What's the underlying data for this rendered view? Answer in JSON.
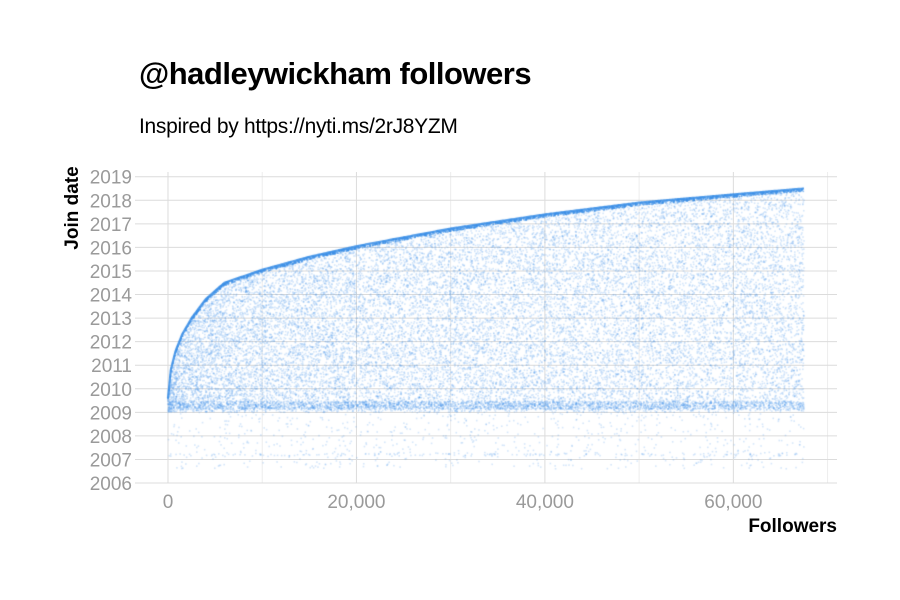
{
  "chart_data": {
    "type": "scatter",
    "title": "@hadleywickham followers",
    "subtitle": "Inspired by https://nyti.ms/2rJ8YZM",
    "xlabel": "Followers",
    "ylabel": "Join date",
    "xlim": [
      -3500,
      71000
    ],
    "ylim": [
      2006,
      2019.2
    ],
    "x_ticks": [
      0,
      20000,
      40000,
      60000
    ],
    "x_tick_labels": [
      "0",
      "20,000",
      "40,000",
      "60,000"
    ],
    "y_ticks": [
      2006,
      2007,
      2008,
      2009,
      2010,
      2011,
      2012,
      2013,
      2014,
      2015,
      2016,
      2017,
      2018,
      2019
    ],
    "y_tick_labels": [
      "2006",
      "2007",
      "2008",
      "2009",
      "2010",
      "2011",
      "2012",
      "2013",
      "2014",
      "2015",
      "2016",
      "2017",
      "2018",
      "2019"
    ],
    "grid": true,
    "point_color": "#3a8ee6",
    "n_followers": 67500,
    "upper_envelope": [
      {
        "x": 0,
        "y": 2009.6
      },
      {
        "x": 300,
        "y": 2010.8
      },
      {
        "x": 800,
        "y": 2011.6
      },
      {
        "x": 1500,
        "y": 2012.3
      },
      {
        "x": 2500,
        "y": 2013.0
      },
      {
        "x": 4000,
        "y": 2013.8
      },
      {
        "x": 6000,
        "y": 2014.5
      },
      {
        "x": 10000,
        "y": 2015.05
      },
      {
        "x": 15000,
        "y": 2015.6
      },
      {
        "x": 20000,
        "y": 2016.05
      },
      {
        "x": 30000,
        "y": 2016.8
      },
      {
        "x": 40000,
        "y": 2017.4
      },
      {
        "x": 50000,
        "y": 2017.9
      },
      {
        "x": 60000,
        "y": 2018.25
      },
      {
        "x": 67500,
        "y": 2018.5
      }
    ],
    "dense_bands": [
      2007.2,
      2009.3
    ],
    "min_join_year": 2006.6
  }
}
